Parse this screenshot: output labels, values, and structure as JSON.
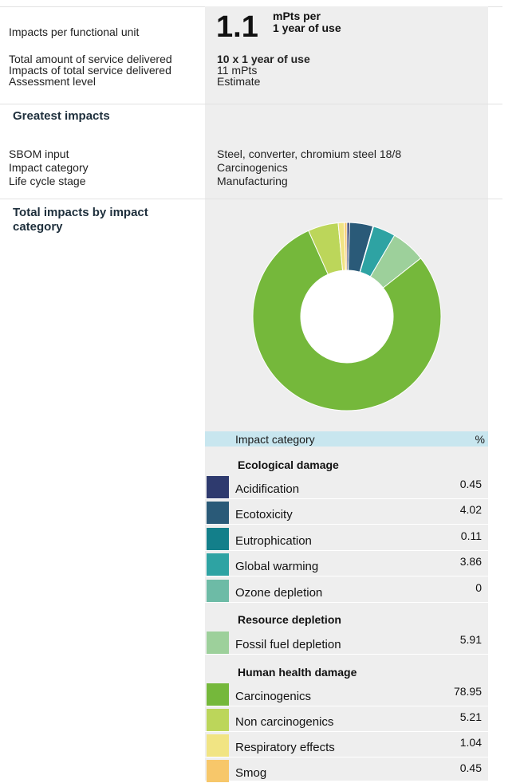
{
  "summary": {
    "functional_unit_label": "Impacts per functional unit",
    "value": "1.1",
    "unit_line1": "mPts per",
    "unit_line2": "1 year of use",
    "total_service_label": "Total amount of service delivered",
    "total_service_value": "10 x 1 year of use",
    "total_impacts_label": "Impacts of total service delivered",
    "total_impacts_value": "11 mPts",
    "assessment_label": "Assessment level",
    "assessment_value": "Estimate"
  },
  "greatest": {
    "heading": "Greatest impacts",
    "sbom_label": "SBOM input",
    "sbom_value": "Steel, converter, chromium steel 18/8",
    "category_label": "Impact category",
    "category_value": "Carcinogenics",
    "stage_label": "Life cycle stage",
    "stage_value": "Manufacturing"
  },
  "by_category": {
    "heading_line1": "Total impacts by impact",
    "heading_line2": "category",
    "table_header_category": "Impact category",
    "table_header_pct": "%",
    "groups": [
      {
        "name": "Ecological damage",
        "items": [
          {
            "name": "Acidification",
            "value": "0.45",
            "color": "#2e3a6e"
          },
          {
            "name": "Ecotoxicity",
            "value": "4.02",
            "color": "#2a5a78"
          },
          {
            "name": "Eutrophication",
            "value": "0.11",
            "color": "#137f8a"
          },
          {
            "name": "Global warming",
            "value": "3.86",
            "color": "#2ea3a3"
          },
          {
            "name": "Ozone depletion",
            "value": "0",
            "color": "#6dbba6"
          }
        ]
      },
      {
        "name": "Resource depletion",
        "items": [
          {
            "name": "Fossil fuel depletion",
            "value": "5.91",
            "color": "#9dd09b"
          }
        ]
      },
      {
        "name": "Human health damage",
        "items": [
          {
            "name": "Carcinogenics",
            "value": "78.95",
            "color": "#75b83b"
          },
          {
            "name": "Non carcinogenics",
            "value": "5.21",
            "color": "#bcd65a"
          },
          {
            "name": "Respiratory effects",
            "value": "1.04",
            "color": "#f1e483"
          },
          {
            "name": "Smog",
            "value": "0.45",
            "color": "#f7c76a"
          }
        ]
      }
    ]
  },
  "chart_data": {
    "type": "pie",
    "categories": [
      "Acidification",
      "Ecotoxicity",
      "Eutrophication",
      "Global warming",
      "Ozone depletion",
      "Fossil fuel depletion",
      "Carcinogenics",
      "Non carcinogenics",
      "Respiratory effects",
      "Smog"
    ],
    "values": [
      0.45,
      4.02,
      0.11,
      3.86,
      0,
      5.91,
      78.95,
      5.21,
      1.04,
      0.45
    ],
    "colors": [
      "#2e3a6e",
      "#2a5a78",
      "#137f8a",
      "#2ea3a3",
      "#6dbba6",
      "#9dd09b",
      "#75b83b",
      "#bcd65a",
      "#f1e483",
      "#f7c76a"
    ],
    "donut": true
  }
}
